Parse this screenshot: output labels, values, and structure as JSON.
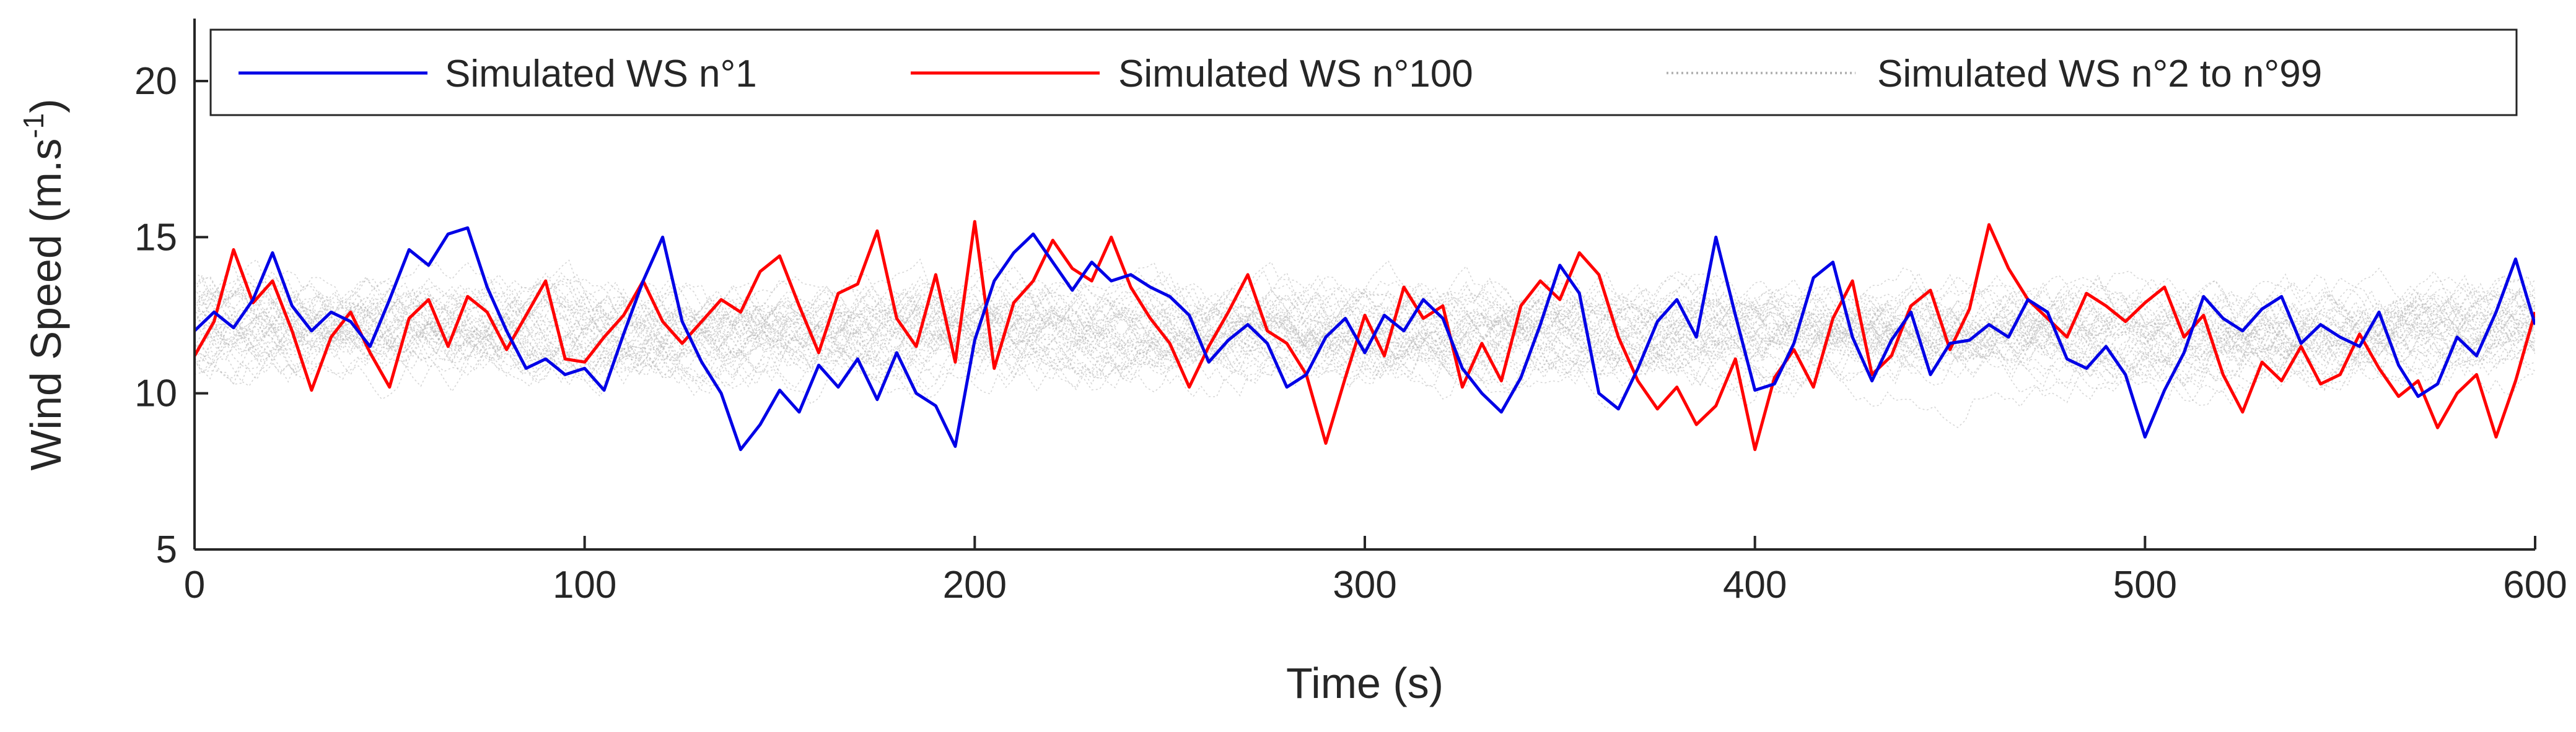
{
  "chart_data": {
    "type": "line",
    "title": "",
    "xlabel": "Time (s)",
    "ylabel": "Wind Speed (m.s",
    "ylabel_superscript": "-1",
    "ylabel_suffix": ")",
    "xlim": [
      0,
      600
    ],
    "ylim": [
      5,
      22
    ],
    "x_ticks": [
      0,
      100,
      200,
      300,
      400,
      500,
      600
    ],
    "y_ticks": [
      5,
      10,
      15,
      20
    ],
    "grid": false,
    "legend_position": "top",
    "colors": {
      "blue": "#0000e6",
      "red": "#ff0000",
      "gray": "#b4b4b4"
    },
    "legend": [
      {
        "label": "Simulated WS n°1",
        "style": "blue-solid"
      },
      {
        "label": "Simulated WS n°100",
        "style": "red-solid"
      },
      {
        "label": "Simulated WS n°2 to n°99",
        "style": "gray-dotted"
      }
    ],
    "series": [
      {
        "name": "Simulated WS n°1",
        "color": "#0000e6",
        "x": [
          0,
          5,
          10,
          15,
          20,
          25,
          30,
          35,
          40,
          45,
          50,
          55,
          60,
          65,
          70,
          75,
          80,
          85,
          90,
          95,
          100,
          105,
          110,
          115,
          120,
          125,
          130,
          135,
          140,
          145,
          150,
          155,
          160,
          165,
          170,
          175,
          180,
          185,
          190,
          195,
          200,
          205,
          210,
          215,
          220,
          225,
          230,
          235,
          240,
          245,
          250,
          255,
          260,
          265,
          270,
          275,
          280,
          285,
          290,
          295,
          300,
          305,
          310,
          315,
          320,
          325,
          330,
          335,
          340,
          345,
          350,
          355,
          360,
          365,
          370,
          375,
          380,
          385,
          390,
          395,
          400,
          405,
          410,
          415,
          420,
          425,
          430,
          435,
          440,
          445,
          450,
          455,
          460,
          465,
          470,
          475,
          480,
          485,
          490,
          495,
          500,
          505,
          510,
          515,
          520,
          525,
          530,
          535,
          540,
          545,
          550,
          555,
          560,
          565,
          570,
          575,
          580,
          585,
          590,
          595,
          600
        ],
        "values": [
          12.0,
          12.6,
          12.1,
          13.0,
          14.5,
          12.8,
          12.0,
          12.6,
          12.3,
          11.5,
          13.0,
          14.6,
          14.1,
          15.1,
          15.3,
          13.4,
          12.0,
          10.8,
          11.1,
          10.6,
          10.8,
          10.1,
          11.9,
          13.6,
          15.0,
          12.3,
          11.0,
          10.0,
          8.2,
          9.0,
          10.1,
          9.4,
          10.9,
          10.2,
          11.1,
          9.8,
          11.3,
          10.0,
          9.6,
          8.3,
          11.7,
          13.6,
          14.5,
          15.1,
          14.2,
          13.3,
          14.2,
          13.6,
          13.8,
          13.4,
          13.1,
          12.5,
          11.0,
          11.7,
          12.2,
          11.6,
          10.2,
          10.6,
          11.8,
          12.4,
          11.3,
          12.5,
          12.0,
          13.0,
          12.4,
          10.8,
          10.0,
          9.4,
          10.5,
          12.2,
          14.1,
          13.2,
          10.0,
          9.5,
          10.8,
          12.3,
          13.0,
          11.8,
          15.0,
          12.5,
          10.1,
          10.3,
          11.6,
          13.7,
          14.2,
          11.8,
          10.4,
          11.7,
          12.6,
          10.6,
          11.6,
          11.7,
          12.2,
          11.8,
          13.0,
          12.6,
          11.1,
          10.8,
          11.5,
          10.6,
          8.6,
          10.1,
          11.3,
          13.1,
          12.4,
          12.0,
          12.7,
          13.1,
          11.6,
          12.2,
          11.8,
          11.5,
          12.6,
          10.9,
          9.9,
          10.3,
          11.8,
          11.2,
          12.6,
          14.3,
          12.2
        ]
      },
      {
        "name": "Simulated WS n°100",
        "color": "#ff0000",
        "x": [
          0,
          5,
          10,
          15,
          20,
          25,
          30,
          35,
          40,
          45,
          50,
          55,
          60,
          65,
          70,
          75,
          80,
          85,
          90,
          95,
          100,
          105,
          110,
          115,
          120,
          125,
          130,
          135,
          140,
          145,
          150,
          155,
          160,
          165,
          170,
          175,
          180,
          185,
          190,
          195,
          200,
          205,
          210,
          215,
          220,
          225,
          230,
          235,
          240,
          245,
          250,
          255,
          260,
          265,
          270,
          275,
          280,
          285,
          290,
          295,
          300,
          305,
          310,
          315,
          320,
          325,
          330,
          335,
          340,
          345,
          350,
          355,
          360,
          365,
          370,
          375,
          380,
          385,
          390,
          395,
          400,
          405,
          410,
          415,
          420,
          425,
          430,
          435,
          440,
          445,
          450,
          455,
          460,
          465,
          470,
          475,
          480,
          485,
          490,
          495,
          500,
          505,
          510,
          515,
          520,
          525,
          530,
          535,
          540,
          545,
          550,
          555,
          560,
          565,
          570,
          575,
          580,
          585,
          590,
          595,
          600
        ],
        "values": [
          11.2,
          12.3,
          14.6,
          12.9,
          13.6,
          12.0,
          10.1,
          11.8,
          12.6,
          11.3,
          10.2,
          12.4,
          13.0,
          11.5,
          13.1,
          12.6,
          11.4,
          12.5,
          13.6,
          11.1,
          11.0,
          11.8,
          12.5,
          13.6,
          12.3,
          11.6,
          12.3,
          13.0,
          12.6,
          13.9,
          14.4,
          12.8,
          11.3,
          13.2,
          13.5,
          15.2,
          12.4,
          11.5,
          13.8,
          11.0,
          15.5,
          10.8,
          12.9,
          13.6,
          14.9,
          14.0,
          13.6,
          15.0,
          13.4,
          12.4,
          11.6,
          10.2,
          11.5,
          12.6,
          13.8,
          12.0,
          11.6,
          10.6,
          8.4,
          10.5,
          12.5,
          11.2,
          13.4,
          12.4,
          12.8,
          10.2,
          11.6,
          10.4,
          12.8,
          13.6,
          13.0,
          14.5,
          13.8,
          11.8,
          10.4,
          9.5,
          10.2,
          9.0,
          9.6,
          11.1,
          8.2,
          10.5,
          11.4,
          10.2,
          12.4,
          13.6,
          10.6,
          11.2,
          12.8,
          13.3,
          11.4,
          12.7,
          15.4,
          14.0,
          13.0,
          12.4,
          11.8,
          13.2,
          12.8,
          12.3,
          12.9,
          13.4,
          11.8,
          12.5,
          10.6,
          9.4,
          11.0,
          10.4,
          11.5,
          10.3,
          10.6,
          11.9,
          10.8,
          9.9,
          10.4,
          8.9,
          10.0,
          10.6,
          8.6,
          10.4,
          12.6
        ]
      }
    ],
    "background_band": {
      "name": "Simulated WS n°2 to n°99",
      "color": "#b4b4b4",
      "count": 98,
      "mean": 12.0,
      "spread": 1.6
    }
  }
}
